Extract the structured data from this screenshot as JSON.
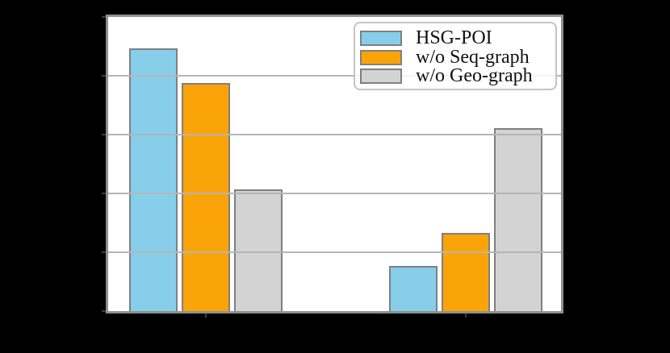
{
  "figure": {
    "background": "#000000",
    "plot_background": "#ffffff",
    "grid_color": "#b5b5b5",
    "spine_color": "#8f8f8f",
    "bar_edge_color": "#7f7f7f",
    "legend_border_color": "#c4c4c4"
  },
  "chart_data": {
    "type": "bar",
    "categories": [
      "",
      ""
    ],
    "series": [
      {
        "name": "HSG-POI",
        "color": "#87CEEB",
        "values": [
          4.46,
          0.77
        ]
      },
      {
        "name": "w/o Seq-graph",
        "color": "#FAA40A",
        "values": [
          3.88,
          1.33
        ]
      },
      {
        "name": "w/o Geo-graph",
        "color": "#D3D3D3",
        "values": [
          2.07,
          3.11
        ]
      }
    ],
    "title": "",
    "xlabel": "",
    "ylabel": "",
    "ylim": [
      0,
      5
    ],
    "grid": true,
    "gridlines_at": [
      1,
      2,
      3,
      4
    ],
    "legend_position": "upper right",
    "axis_text_visible": false,
    "note": "Axis tick labels and axis titles are rendered in black on a black background and are not visible; bar values are measured in y-gridline units (5 equal intervals)."
  }
}
